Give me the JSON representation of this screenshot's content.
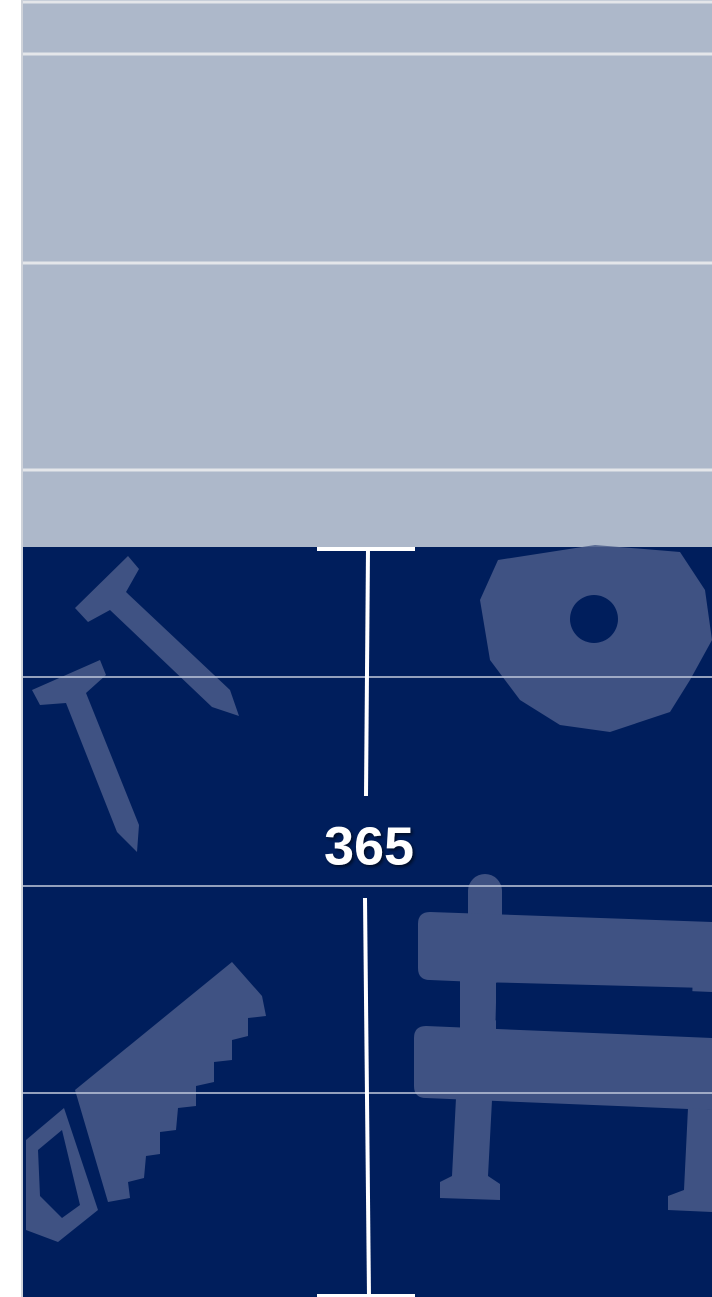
{
  "label": "365"
}
